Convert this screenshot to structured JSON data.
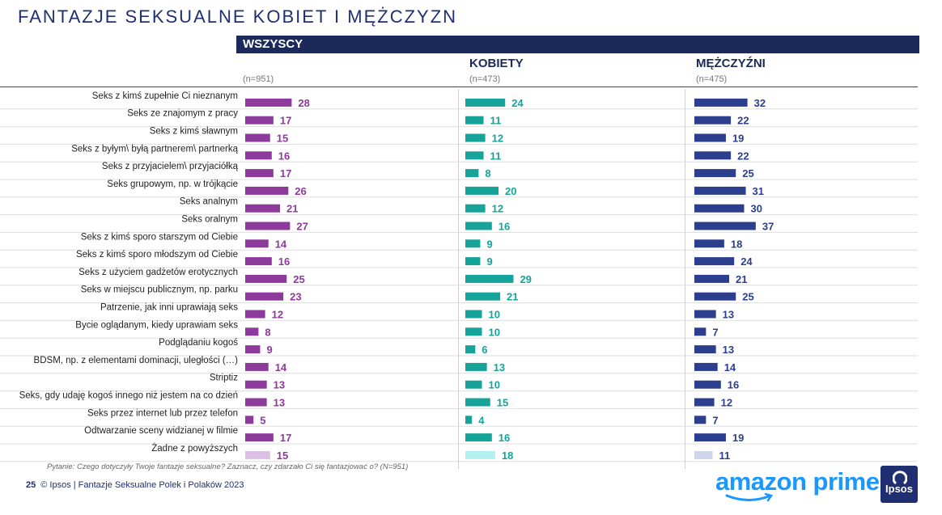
{
  "title": "FANTAZJE SEKSUALNE KOBIET I MĘŻCZYZN",
  "band_label": "WSZYSCY",
  "columns": [
    {
      "name": "",
      "n": "(n=951)"
    },
    {
      "name": "KOBIETY",
      "n": "(n=473)"
    },
    {
      "name": "MĘŻCZYŹNI",
      "n": "(n=475)"
    }
  ],
  "chart_data": {
    "type": "bar",
    "orientation": "horizontal",
    "categories": [
      "Seks z kimś zupełnie Ci nieznanym",
      "Seks ze znajomym z pracy",
      "Seks z kimś sławnym",
      "Seks z byłym\\ byłą partnerem\\ partnerką",
      "Seks z przyjacielem\\ przyjaciółką",
      "Seks grupowym, np. w trójkącie",
      "Seks analnym",
      "Seks oralnym",
      "Seks z kimś sporo starszym od Ciebie",
      "Seks z kimś sporo młodszym od Ciebie",
      "Seks z użyciem gadżetów erotycznych",
      "Seks w miejscu publicznym, np. parku",
      "Patrzenie, jak inni uprawiają seks",
      "Bycie oglądanym, kiedy uprawiam seks",
      "Podglądaniu kogoś",
      "BDSM, np. z elementami dominacji, uległości (…)",
      "Striptiz",
      "Seks, gdy udaję kogoś innego niż jestem na co dzień",
      "Seks przez internet lub przez telefon",
      "Odtwarzanie sceny widzianej w filmie",
      "Żadne z powyższych"
    ],
    "series": [
      {
        "values": [
          28,
          17,
          15,
          16,
          17,
          26,
          21,
          27,
          14,
          16,
          25,
          23,
          12,
          8,
          9,
          14,
          13,
          13,
          5,
          17,
          15
        ],
        "color": "#8e3a9d",
        "color_last": "#dcbfe4"
      },
      {
        "name": "KOBIETY",
        "values": [
          24,
          11,
          12,
          11,
          8,
          20,
          12,
          16,
          9,
          9,
          29,
          21,
          10,
          10,
          6,
          13,
          10,
          15,
          4,
          16,
          18
        ],
        "color": "#16a39a",
        "color_last": "#b3f1f0"
      },
      {
        "name": "MĘŻCZYŹNI",
        "values": [
          32,
          22,
          19,
          22,
          25,
          31,
          30,
          37,
          18,
          24,
          21,
          25,
          13,
          7,
          13,
          14,
          16,
          12,
          7,
          19,
          11
        ],
        "color": "#2c3f8e",
        "color_last": "#cfd6ea"
      }
    ],
    "xlim": [
      0,
      100
    ],
    "grid": false,
    "legend": "none"
  },
  "question": "Pytanie: Czego dotyczyły Twoje fantazje seksualne? Zaznacz, czy zdarzało Ci się fantazjować o? (N=951)",
  "footer": {
    "page": "25",
    "text": "© Ipsos | Fantazje Seksualne Polek i Polaków 2023"
  },
  "brand": {
    "amazon": "amazon prime",
    "ipsos": "Ipsos"
  }
}
